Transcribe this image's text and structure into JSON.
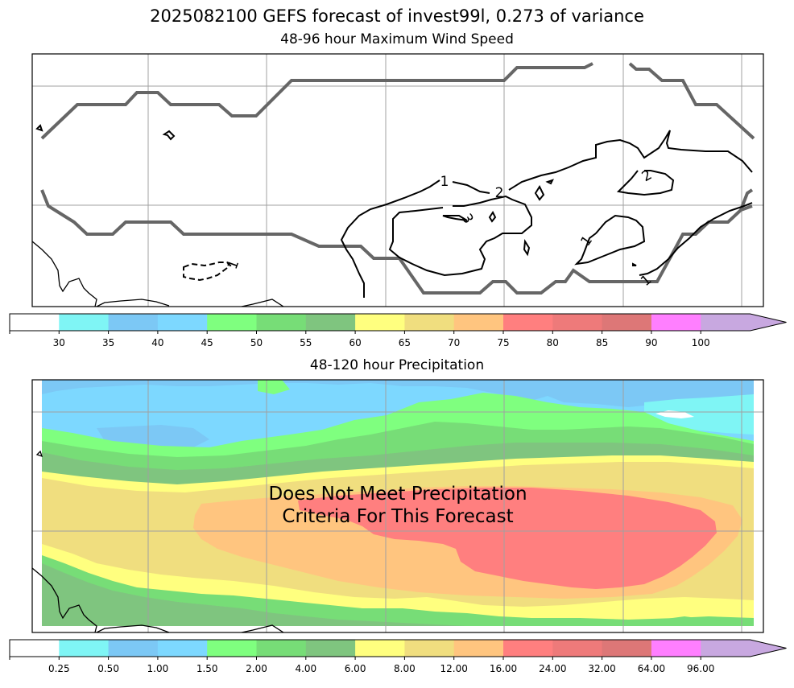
{
  "suptitle": "2025082100 GEFS forecast of invest99l, 0.273 of variance",
  "colors": {
    "coast": "#000000",
    "cone": "#666666",
    "grid": "#a0a0a0",
    "palette": [
      "#ffffff",
      "#7ff5f5",
      "#7cc8f5",
      "#7dd8ff",
      "#7fff7f",
      "#77dd77",
      "#7fc57f",
      "#ffff7f",
      "#f0de7f",
      "#ffc57f",
      "#ff7f7f",
      "#ee7a7a",
      "#dd7777",
      "#ff7fff",
      "#c8a8e0"
    ]
  },
  "chart_data": [
    {
      "type": "contour",
      "title": "48-96 hour Maximum Wind Speed",
      "contour_labels": [
        "1",
        "2",
        "3",
        "1",
        "2",
        "1",
        "1"
      ],
      "colorbar": {
        "ticks": [
          "30",
          "35",
          "40",
          "45",
          "50",
          "55",
          "60",
          "65",
          "70",
          "75",
          "80",
          "85",
          "90",
          "100"
        ],
        "extend": "max"
      }
    },
    {
      "type": "heatmap",
      "title": "48-120 hour Precipitation",
      "annotation": [
        "Does Not Meet Precipitation",
        "Criteria For This Forecast"
      ],
      "colorbar": {
        "ticks": [
          "0.25",
          "0.50",
          "1.00",
          "1.50",
          "2.00",
          "4.00",
          "6.00",
          "8.00",
          "12.00",
          "16.00",
          "24.00",
          "32.00",
          "64.00",
          "96.00"
        ],
        "extend": "max"
      }
    }
  ]
}
